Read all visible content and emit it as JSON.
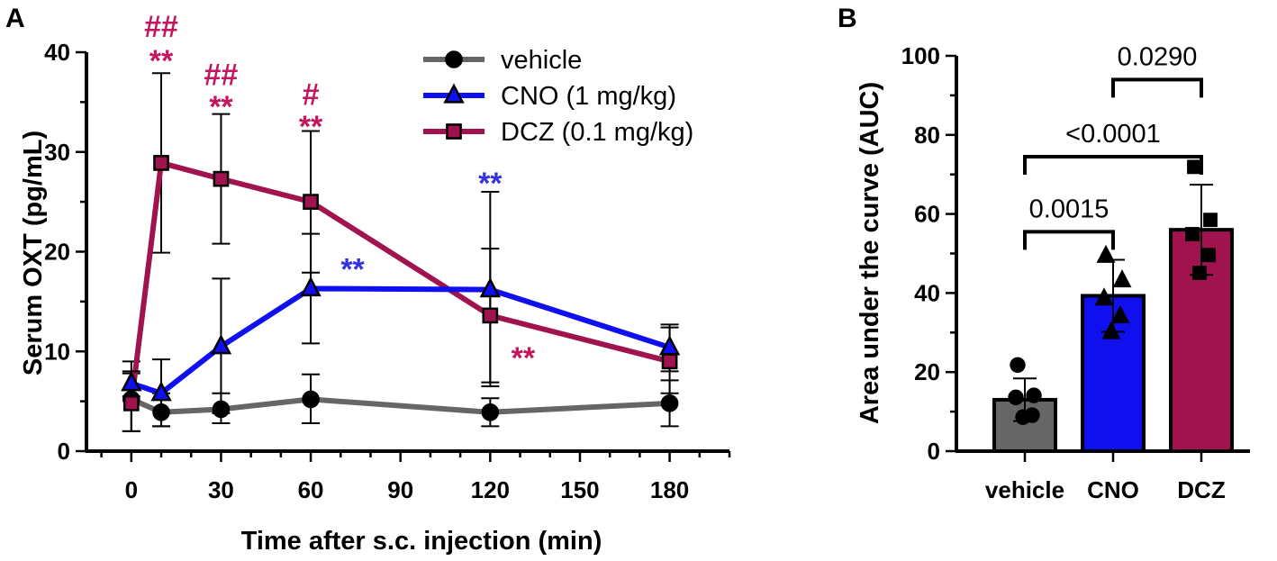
{
  "chart_data": [
    {
      "panel": "A",
      "type": "line",
      "xlabel": "Time after s.c. injection (min)",
      "ylabel": "Serum OXT (pg/mL)",
      "xlim": [
        -15,
        200
      ],
      "ylim": [
        0,
        40
      ],
      "xticks": [
        0,
        30,
        60,
        90,
        120,
        150,
        180
      ],
      "yticks": [
        0,
        10,
        20,
        30,
        40
      ],
      "legend": {
        "position": "top-right"
      },
      "series": [
        {
          "name": "vehicle",
          "color": "#666666",
          "marker": "circle",
          "x": [
            0,
            10,
            30,
            60,
            120,
            180
          ],
          "y": [
            5.2,
            3.9,
            4.2,
            5.2,
            3.9,
            4.8
          ],
          "err_upper": [
            7.8,
            5.8,
            5.8,
            7.7,
            5.3,
            7.1
          ],
          "err_lower": [
            2.0,
            2.5,
            2.8,
            2.8,
            2.5,
            2.5
          ]
        },
        {
          "name": "CNO (1 mg/kg)",
          "color": "#1010ee",
          "marker": "triangle",
          "x": [
            0,
            10,
            30,
            60,
            120,
            180
          ],
          "y": [
            6.8,
            5.8,
            10.5,
            16.3,
            16.2,
            10.4
          ],
          "err_upper": [
            8.0,
            9.2,
            17.3,
            21.8,
            26.0,
            12.7
          ],
          "err_lower": [
            5.5,
            2.5,
            3.8,
            10.8,
            6.5,
            8.0
          ]
        },
        {
          "name": "DCZ (0.1 mg/kg)",
          "color": "#a0134e",
          "marker": "square",
          "x": [
            0,
            10,
            30,
            60,
            120,
            180
          ],
          "y": [
            4.8,
            28.9,
            27.3,
            25.0,
            13.6,
            9.0
          ],
          "err_upper": [
            9.0,
            37.9,
            33.8,
            32.1,
            20.3,
            12.4
          ],
          "err_lower": [
            2.0,
            19.9,
            20.8,
            17.9,
            6.9,
            5.8
          ]
        }
      ],
      "annotations": [
        {
          "x": 10,
          "y": 42.6,
          "text": "##",
          "color": "#c4165f"
        },
        {
          "x": 10,
          "y": 39.2,
          "text": "**",
          "color": "#c4165f"
        },
        {
          "x": 30,
          "y": 37.8,
          "text": "##",
          "color": "#c4165f"
        },
        {
          "x": 30,
          "y": 34.6,
          "text": "**",
          "color": "#c4165f"
        },
        {
          "x": 60,
          "y": 35.8,
          "text": "#",
          "color": "#c4165f"
        },
        {
          "x": 60,
          "y": 32.6,
          "text": "**",
          "color": "#c4165f"
        },
        {
          "x": 74,
          "y": 18.3,
          "text": "**",
          "color": "#3333dd"
        },
        {
          "x": 120,
          "y": 26.9,
          "text": "**",
          "color": "#3333dd"
        },
        {
          "x": 131,
          "y": 9.4,
          "text": "**",
          "color": "#c4165f"
        }
      ]
    },
    {
      "panel": "B",
      "type": "bar",
      "ylabel": "Area under the curve (AUC)",
      "categories": [
        "vehicle",
        "CNO",
        "DCZ"
      ],
      "values": [
        13,
        39.3,
        56
      ],
      "err_upper": [
        18.4,
        48.4,
        67.4
      ],
      "err_lower": [
        7.6,
        30.2,
        44.6
      ],
      "colors": [
        "#666666",
        "#1010ee",
        "#a0134e"
      ],
      "ylim": [
        0,
        100
      ],
      "yticks": [
        0,
        20,
        40,
        60,
        80,
        100
      ],
      "points": [
        [
          21.8,
          14.1,
          13.6,
          9.1,
          8.6
        ],
        [
          49.4,
          43.2,
          38.6,
          34.1,
          30.1
        ],
        [
          71.9,
          58.5,
          54.9,
          49.6,
          45.1
        ]
      ],
      "point_markers": [
        "circle",
        "triangle",
        "square"
      ],
      "comparisons": [
        {
          "from": 0,
          "to": 1,
          "y": 55.5,
          "label": "0.0015"
        },
        {
          "from": 0,
          "to": 2,
          "y": 74.5,
          "label": "<0.0001"
        },
        {
          "from": 1,
          "to": 2,
          "y": 94,
          "label": "0.0290"
        }
      ]
    }
  ],
  "panel_labels": [
    "A",
    "B"
  ]
}
